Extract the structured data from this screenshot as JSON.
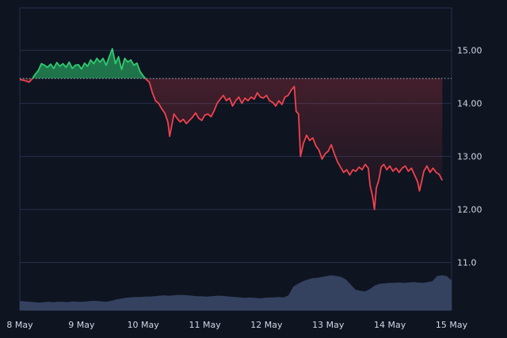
{
  "chart_data": {
    "type": "area",
    "title": "",
    "xlabel": "",
    "ylabel": "",
    "x_ticks": [
      "8 May",
      "9 May",
      "10 May",
      "11 May",
      "12 May",
      "13 May",
      "14 May",
      "15 May"
    ],
    "y_ticks": [
      "11.0",
      "12.00",
      "13.00",
      "14.00",
      "15.00"
    ],
    "ylim": [
      10.1,
      15.8
    ],
    "xlim": [
      0,
      7
    ],
    "baseline": 14.47,
    "grid": true,
    "legend": "none",
    "colors": {
      "above": "#2ecc71",
      "below": "#f0424e",
      "baseline": "#cfd6e4",
      "volume": "#3b4a6b",
      "grid": "#26304a",
      "background": "#0f1421"
    },
    "series": [
      {
        "values": [
          [
            0.0,
            14.45
          ],
          [
            0.08,
            14.43
          ],
          [
            0.15,
            14.4
          ],
          [
            0.2,
            14.46
          ],
          [
            0.25,
            14.55
          ],
          [
            0.3,
            14.62
          ],
          [
            0.35,
            14.75
          ],
          [
            0.4,
            14.72
          ],
          [
            0.45,
            14.68
          ],
          [
            0.5,
            14.74
          ],
          [
            0.55,
            14.66
          ],
          [
            0.6,
            14.77
          ],
          [
            0.65,
            14.7
          ],
          [
            0.7,
            14.75
          ],
          [
            0.75,
            14.68
          ],
          [
            0.8,
            14.78
          ],
          [
            0.85,
            14.66
          ],
          [
            0.9,
            14.72
          ],
          [
            0.95,
            14.73
          ],
          [
            1.0,
            14.65
          ],
          [
            1.05,
            14.76
          ],
          [
            1.1,
            14.7
          ],
          [
            1.15,
            14.82
          ],
          [
            1.2,
            14.75
          ],
          [
            1.25,
            14.85
          ],
          [
            1.3,
            14.78
          ],
          [
            1.35,
            14.85
          ],
          [
            1.4,
            14.72
          ],
          [
            1.45,
            14.88
          ],
          [
            1.5,
            15.03
          ],
          [
            1.55,
            14.75
          ],
          [
            1.6,
            14.88
          ],
          [
            1.65,
            14.64
          ],
          [
            1.7,
            14.85
          ],
          [
            1.75,
            14.78
          ],
          [
            1.8,
            14.82
          ],
          [
            1.85,
            14.72
          ],
          [
            1.9,
            14.76
          ],
          [
            1.95,
            14.6
          ],
          [
            2.0,
            14.52
          ],
          [
            2.05,
            14.45
          ],
          [
            2.1,
            14.4
          ],
          [
            2.15,
            14.2
          ],
          [
            2.2,
            14.05
          ],
          [
            2.25,
            14.0
          ],
          [
            2.3,
            13.9
          ],
          [
            2.35,
            13.82
          ],
          [
            2.4,
            13.65
          ],
          [
            2.43,
            13.38
          ],
          [
            2.47,
            13.62
          ],
          [
            2.5,
            13.8
          ],
          [
            2.55,
            13.72
          ],
          [
            2.6,
            13.65
          ],
          [
            2.65,
            13.7
          ],
          [
            2.7,
            13.62
          ],
          [
            2.75,
            13.68
          ],
          [
            2.8,
            13.74
          ],
          [
            2.85,
            13.82
          ],
          [
            2.9,
            13.72
          ],
          [
            2.95,
            13.68
          ],
          [
            3.0,
            13.78
          ],
          [
            3.05,
            13.8
          ],
          [
            3.1,
            13.75
          ],
          [
            3.15,
            13.86
          ],
          [
            3.2,
            14.0
          ],
          [
            3.25,
            14.08
          ],
          [
            3.3,
            14.15
          ],
          [
            3.35,
            14.05
          ],
          [
            3.4,
            14.1
          ],
          [
            3.45,
            13.95
          ],
          [
            3.5,
            14.05
          ],
          [
            3.55,
            14.12
          ],
          [
            3.6,
            14.0
          ],
          [
            3.65,
            14.1
          ],
          [
            3.7,
            14.05
          ],
          [
            3.75,
            14.12
          ],
          [
            3.8,
            14.08
          ],
          [
            3.85,
            14.2
          ],
          [
            3.9,
            14.12
          ],
          [
            3.95,
            14.1
          ],
          [
            4.0,
            14.15
          ],
          [
            4.05,
            14.05
          ],
          [
            4.1,
            14.02
          ],
          [
            4.15,
            13.95
          ],
          [
            4.2,
            14.05
          ],
          [
            4.25,
            13.98
          ],
          [
            4.3,
            14.12
          ],
          [
            4.35,
            14.15
          ],
          [
            4.4,
            14.25
          ],
          [
            4.45,
            14.32
          ],
          [
            4.48,
            13.85
          ],
          [
            4.52,
            13.8
          ],
          [
            4.55,
            13.0
          ],
          [
            4.6,
            13.25
          ],
          [
            4.65,
            13.4
          ],
          [
            4.7,
            13.3
          ],
          [
            4.75,
            13.35
          ],
          [
            4.8,
            13.2
          ],
          [
            4.85,
            13.12
          ],
          [
            4.9,
            12.95
          ],
          [
            4.95,
            13.05
          ],
          [
            5.0,
            13.1
          ],
          [
            5.05,
            13.22
          ],
          [
            5.1,
            13.05
          ],
          [
            5.15,
            12.9
          ],
          [
            5.2,
            12.8
          ],
          [
            5.25,
            12.7
          ],
          [
            5.3,
            12.75
          ],
          [
            5.35,
            12.65
          ],
          [
            5.4,
            12.75
          ],
          [
            5.45,
            12.72
          ],
          [
            5.5,
            12.8
          ],
          [
            5.55,
            12.75
          ],
          [
            5.6,
            12.85
          ],
          [
            5.65,
            12.78
          ],
          [
            5.68,
            12.45
          ],
          [
            5.72,
            12.25
          ],
          [
            5.75,
            12.0
          ],
          [
            5.78,
            12.4
          ],
          [
            5.82,
            12.55
          ],
          [
            5.86,
            12.8
          ],
          [
            5.9,
            12.85
          ],
          [
            5.95,
            12.75
          ],
          [
            6.0,
            12.82
          ],
          [
            6.05,
            12.72
          ],
          [
            6.1,
            12.78
          ],
          [
            6.15,
            12.7
          ],
          [
            6.2,
            12.78
          ],
          [
            6.25,
            12.82
          ],
          [
            6.3,
            12.72
          ],
          [
            6.35,
            12.78
          ],
          [
            6.4,
            12.65
          ],
          [
            6.45,
            12.52
          ],
          [
            6.48,
            12.35
          ],
          [
            6.52,
            12.55
          ],
          [
            6.55,
            12.72
          ],
          [
            6.6,
            12.82
          ],
          [
            6.65,
            12.7
          ],
          [
            6.7,
            12.78
          ],
          [
            6.75,
            12.7
          ],
          [
            6.8,
            12.66
          ],
          [
            6.85,
            12.55
          ]
        ]
      }
    ],
    "volume": [
      0.22,
      0.21,
      0.2,
      0.19,
      0.18,
      0.19,
      0.2,
      0.19,
      0.2,
      0.2,
      0.19,
      0.21,
      0.2,
      0.2,
      0.21,
      0.22,
      0.22,
      0.21,
      0.2,
      0.22,
      0.25,
      0.27,
      0.29,
      0.3,
      0.31,
      0.31,
      0.32,
      0.32,
      0.33,
      0.34,
      0.35,
      0.34,
      0.35,
      0.36,
      0.36,
      0.35,
      0.34,
      0.33,
      0.33,
      0.32,
      0.33,
      0.34,
      0.34,
      0.33,
      0.32,
      0.31,
      0.3,
      0.29,
      0.3,
      0.29,
      0.28,
      0.29,
      0.3,
      0.3,
      0.31,
      0.3,
      0.35,
      0.55,
      0.62,
      0.68,
      0.72,
      0.75,
      0.76,
      0.78,
      0.8,
      0.82,
      0.8,
      0.78,
      0.72,
      0.6,
      0.48,
      0.46,
      0.44,
      0.5,
      0.58,
      0.62,
      0.63,
      0.64,
      0.64,
      0.65,
      0.64,
      0.65,
      0.66,
      0.65,
      0.64,
      0.66,
      0.68,
      0.8,
      0.82,
      0.8,
      0.7
    ],
    "volume_max": 1
  }
}
